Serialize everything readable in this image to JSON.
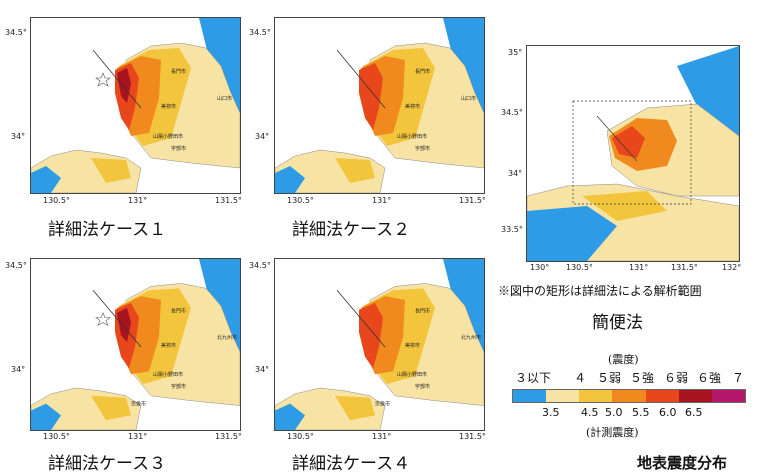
{
  "panels": [
    {
      "caption": "詳細法ケース１",
      "y_ticks": [
        "34.5°",
        "34°"
      ],
      "x_ticks": [
        "130.5°",
        "131°",
        "131.5°"
      ],
      "star": true,
      "cities": [
        "長門市",
        "美祢市",
        "山陽小野田市",
        "宇部市",
        "山口市"
      ]
    },
    {
      "caption": "詳細法ケース２",
      "y_ticks": [
        "34.5°",
        "34°"
      ],
      "x_ticks": [
        "130.5°",
        "131°",
        "131.5°"
      ],
      "star": false,
      "cities": [
        "長門市",
        "美祢市",
        "山陽小野田市",
        "宇部市",
        "山口市"
      ]
    },
    {
      "caption": "詳細法ケース３",
      "y_ticks": [
        "34.5°",
        "34°"
      ],
      "x_ticks": [
        "130.5°",
        "131°",
        "131.5°"
      ],
      "star": true,
      "cities": [
        "長門市",
        "美祢市",
        "山陽小野田市",
        "宇部市",
        "北九州市",
        "宗像市"
      ]
    },
    {
      "caption": "詳細法ケース４",
      "y_ticks": [
        "34.5°",
        "34°"
      ],
      "x_ticks": [
        "130.5°",
        "131°",
        "131.5°"
      ],
      "star": false,
      "cities": [
        "長門市",
        "美祢市",
        "山陽小野田市",
        "宇部市",
        "北九州市",
        "宗像市"
      ]
    }
  ],
  "simple": {
    "caption": "簡便法",
    "y_ticks": [
      "35°",
      "34.5°",
      "34°",
      "33.5°"
    ],
    "x_ticks": [
      "130°",
      "130.5°",
      "131°",
      "131.5°",
      "132°"
    ],
    "note": "※図中の矩形は詳細法による解析範囲"
  },
  "legend": {
    "top_label": "(震度)",
    "levels": [
      "３以下",
      "４",
      "５弱",
      "５強",
      "６弱",
      "６強",
      "７"
    ],
    "values": [
      "3.5",
      "4.5",
      "5.0",
      "5.5",
      "6.0",
      "6.5"
    ],
    "bottom_label": "(計測震度)",
    "colors": [
      "#2e9be6",
      "#f7e4a5",
      "#f2c53c",
      "#f08a1e",
      "#e8461b",
      "#a7131e",
      "#b3176a"
    ]
  },
  "title": "地表震度分布"
}
